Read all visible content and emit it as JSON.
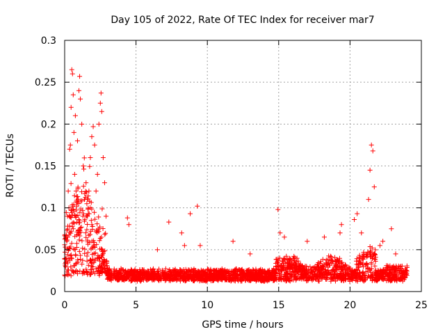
{
  "chart_data": {
    "type": "scatter",
    "title": "Day 105 of 2022, Rate Of TEC Index for receiver mar7",
    "xlabel": "GPS time / hours",
    "ylabel": "ROTI / TECUs",
    "xlim": [
      0,
      25
    ],
    "ylim": [
      0,
      0.3
    ],
    "x_ticks": [
      0,
      5,
      10,
      15,
      20,
      25
    ],
    "y_ticks": [
      0,
      0.05,
      0.1,
      0.15,
      0.2,
      0.25,
      0.3
    ],
    "x_tick_labels": [
      "0",
      "5",
      "10",
      "15",
      "20",
      "25"
    ],
    "y_tick_labels": [
      "0",
      "0.05",
      "0.1",
      "0.15",
      "0.2",
      "0.25",
      "0.3"
    ],
    "grid": true,
    "marker": "+",
    "color": "#ff0000",
    "series": [
      {
        "points": [
          [
            0.1,
            0.04
          ],
          [
            0.15,
            0.06
          ],
          [
            0.2,
            0.09
          ],
          [
            0.25,
            0.12
          ],
          [
            0.3,
            0.1
          ],
          [
            0.35,
            0.17
          ],
          [
            0.4,
            0.175
          ],
          [
            0.45,
            0.22
          ],
          [
            0.5,
            0.265
          ],
          [
            0.55,
            0.26
          ],
          [
            0.6,
            0.235
          ],
          [
            0.65,
            0.19
          ],
          [
            0.7,
            0.14
          ],
          [
            0.75,
            0.21
          ],
          [
            0.8,
            0.12
          ],
          [
            0.9,
            0.18
          ],
          [
            1.0,
            0.24
          ],
          [
            1.05,
            0.257
          ],
          [
            1.1,
            0.23
          ],
          [
            1.2,
            0.2
          ],
          [
            1.3,
            0.15
          ],
          [
            1.4,
            0.11
          ],
          [
            1.5,
            0.13
          ],
          [
            1.6,
            0.09
          ],
          [
            1.7,
            0.12
          ],
          [
            1.8,
            0.16
          ],
          [
            1.9,
            0.185
          ],
          [
            2.0,
            0.197
          ],
          [
            2.1,
            0.175
          ],
          [
            2.2,
            0.12
          ],
          [
            2.3,
            0.14
          ],
          [
            2.4,
            0.2
          ],
          [
            2.5,
            0.225
          ],
          [
            2.55,
            0.237
          ],
          [
            2.6,
            0.215
          ],
          [
            2.7,
            0.16
          ],
          [
            2.8,
            0.13
          ],
          [
            2.9,
            0.09
          ],
          [
            4.4,
            0.088
          ],
          [
            4.5,
            0.08
          ],
          [
            6.5,
            0.05
          ],
          [
            7.3,
            0.083
          ],
          [
            8.2,
            0.07
          ],
          [
            8.4,
            0.055
          ],
          [
            8.8,
            0.093
          ],
          [
            9.3,
            0.102
          ],
          [
            9.5,
            0.055
          ],
          [
            11.8,
            0.06
          ],
          [
            13.0,
            0.045
          ],
          [
            14.95,
            0.098
          ],
          [
            15.1,
            0.07
          ],
          [
            15.4,
            0.065
          ],
          [
            17.0,
            0.06
          ],
          [
            18.2,
            0.065
          ],
          [
            19.3,
            0.07
          ],
          [
            19.4,
            0.08
          ],
          [
            20.3,
            0.086
          ],
          [
            20.5,
            0.093
          ],
          [
            20.8,
            0.07
          ],
          [
            21.3,
            0.11
          ],
          [
            21.4,
            0.145
          ],
          [
            21.5,
            0.175
          ],
          [
            21.6,
            0.168
          ],
          [
            21.7,
            0.125
          ],
          [
            22.1,
            0.055
          ],
          [
            22.3,
            0.06
          ],
          [
            22.9,
            0.075
          ],
          [
            23.2,
            0.045
          ]
        ]
      }
    ]
  }
}
